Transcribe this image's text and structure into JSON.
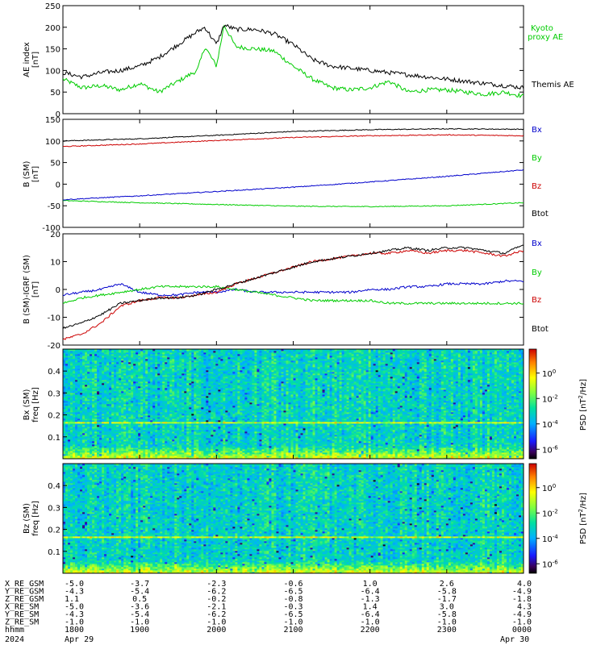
{
  "colors": {
    "black": "#000000",
    "blue": "#0000cc",
    "green": "#00cc00",
    "red": "#cc0000"
  },
  "chart_data": [
    {
      "type": "line",
      "ylabel": "AE index [nT]",
      "ylim": [
        0,
        250
      ],
      "yticks": [
        "250",
        "200",
        "150",
        "100",
        "50",
        "0"
      ],
      "x_time_hours": [
        18.0,
        18.25,
        18.5,
        18.75,
        19.0,
        19.25,
        19.5,
        19.75,
        19.85,
        20.0,
        20.1,
        20.25,
        20.5,
        20.75,
        21.0,
        21.25,
        21.5,
        21.75,
        22.0,
        22.25,
        22.5,
        22.75,
        23.0,
        23.25,
        23.5,
        23.75,
        24.0
      ],
      "series": [
        {
          "name": "Kyoto proxy AE",
          "color": "green",
          "values": [
            80,
            60,
            65,
            55,
            70,
            50,
            75,
            100,
            155,
            110,
            205,
            155,
            150,
            145,
            110,
            80,
            60,
            55,
            60,
            75,
            50,
            55,
            55,
            50,
            45,
            50,
            40
          ]
        },
        {
          "name": "Themis AE",
          "color": "black",
          "values": [
            95,
            85,
            95,
            100,
            110,
            130,
            160,
            190,
            200,
            160,
            205,
            195,
            195,
            185,
            160,
            125,
            110,
            105,
            100,
            95,
            90,
            85,
            80,
            75,
            70,
            65,
            60
          ]
        }
      ]
    },
    {
      "type": "line",
      "ylabel": "B (SM) [nT]",
      "ylim": [
        -100,
        150
      ],
      "yticks": [
        "150",
        "100",
        "50",
        "0",
        "-50",
        "-100"
      ],
      "x_time_hours": [
        18,
        19,
        20,
        21,
        22,
        23,
        24
      ],
      "series": [
        {
          "name": "Bx",
          "color": "black",
          "values": [
            100,
            105,
            113,
            122,
            126,
            128,
            127
          ]
        },
        {
          "name": "By",
          "color": "green",
          "values": [
            -38,
            -43,
            -47,
            -51,
            -52,
            -50,
            -43
          ]
        },
        {
          "name": "Bz",
          "color": "red",
          "values": [
            87,
            93,
            101,
            108,
            112,
            114,
            112
          ]
        },
        {
          "name": "Btot",
          "color": "blue",
          "values": [
            -36,
            -27,
            -17,
            -7,
            5,
            18,
            33
          ]
        }
      ]
    },
    {
      "type": "line",
      "ylabel": "B (SM)-IGRF (SM) [nT]",
      "ylim": [
        -20,
        20
      ],
      "yticks": [
        "20",
        "10",
        "0",
        "-10",
        "-20"
      ],
      "x_time_hours": [
        18.0,
        18.25,
        18.5,
        18.75,
        19.0,
        19.25,
        19.5,
        19.75,
        20.0,
        20.25,
        20.5,
        20.75,
        21.0,
        21.25,
        21.5,
        21.75,
        22.0,
        22.25,
        22.5,
        22.75,
        23.0,
        23.25,
        23.5,
        23.75,
        24.0
      ],
      "series": [
        {
          "name": "Bx",
          "color": "blue",
          "values": [
            -2,
            -1,
            0,
            2,
            -1,
            -2,
            -2,
            -1,
            -1,
            0,
            -1,
            -1,
            -1,
            -1,
            -1,
            -1,
            0,
            0,
            1,
            1,
            2,
            2,
            2,
            3,
            3
          ]
        },
        {
          "name": "By",
          "color": "green",
          "values": [
            -5,
            -3,
            -2,
            -1,
            0,
            1,
            1,
            1,
            1,
            0,
            -1,
            -2,
            -3,
            -4,
            -4,
            -4,
            -4,
            -5,
            -5,
            -5,
            -5,
            -5,
            -5,
            -5,
            -5
          ]
        },
        {
          "name": "Bz",
          "color": "red",
          "values": [
            -18,
            -16,
            -12,
            -6,
            -4,
            -3,
            -3,
            -2,
            -1,
            2,
            4,
            6,
            8,
            10,
            11,
            12,
            13,
            13,
            14,
            13,
            14,
            14,
            13,
            12,
            14
          ]
        },
        {
          "name": "Btot",
          "color": "black",
          "values": [
            -14,
            -12,
            -9,
            -5,
            -4,
            -3,
            -3,
            -2,
            0,
            2,
            4,
            6,
            8,
            10,
            11,
            12,
            13,
            14,
            15,
            14,
            15,
            15,
            14,
            13,
            16
          ]
        }
      ]
    },
    {
      "type": "heatmap",
      "ylabel": "Bx (SM) freq [Hz]",
      "ylim": [
        0,
        0.5
      ],
      "yticks": [
        "0.4",
        "0.3",
        "0.2",
        "0.1"
      ],
      "colorbar_label": "PSD [nT^2/Hz]",
      "colorbar_ticks": [
        "10^0",
        "10^-2",
        "10^-4",
        "10^-6"
      ]
    },
    {
      "type": "heatmap",
      "ylabel": "Bz (SM) freq [Hz]",
      "ylim": [
        0,
        0.5
      ],
      "yticks": [
        "0.4",
        "0.3",
        "0.2",
        "0.1"
      ],
      "colorbar_label": "PSD [nT^2/Hz]",
      "colorbar_ticks": [
        "10^0",
        "10^-2",
        "10^-4",
        "10^-6"
      ]
    }
  ],
  "panels": {
    "ae": {
      "ylabel_main": "AE index",
      "ylabel_unit": "[nT]",
      "legend_top": "Kyoto",
      "legend_top2": "proxy AE",
      "legend_bottom": "Themis AE"
    },
    "bsm": {
      "ylabel_main": "B (SM)",
      "ylabel_unit": "[nT]",
      "legend": [
        "Bx",
        "By",
        "Bz",
        "Btot"
      ]
    },
    "bdiff": {
      "ylabel_main": "B (SM)-IGRF (SM)",
      "ylabel_unit": "[nT]",
      "legend": [
        "Bx",
        "By",
        "Bz",
        "Btot"
      ]
    },
    "spec1": {
      "ylabel_main": "Bx (SM)",
      "ylabel_unit": "freq [Hz]",
      "cb_label": "PSD [nT",
      "cb_label2": "/Hz]"
    },
    "spec2": {
      "ylabel_main": "Bz (SM)",
      "ylabel_unit": "freq [Hz]",
      "cb_label": "PSD [nT",
      "cb_label2": "/Hz]"
    }
  },
  "ephemeris": {
    "rows": [
      {
        "label": "X_RE_GSM",
        "values": [
          "-5.0",
          "-3.7",
          "-2.3",
          "-0.6",
          "1.0",
          "2.6",
          "4.0"
        ]
      },
      {
        "label": "Y_RE_GSM",
        "values": [
          "-4.3",
          "-5.4",
          "-6.2",
          "-6.5",
          "-6.4",
          "-5.8",
          "-4.9"
        ]
      },
      {
        "label": "Z_RE_GSM",
        "values": [
          "1.1",
          "0.5",
          "-0.2",
          "-0.8",
          "-1.3",
          "-1.7",
          "-1.8"
        ]
      },
      {
        "label": "X_RE_SM",
        "values": [
          "-5.0",
          "-3.6",
          "-2.1",
          "-0.3",
          "1.4",
          "3.0",
          "4.3"
        ]
      },
      {
        "label": "Y_RE_SM",
        "values": [
          "-4.3",
          "-5.4",
          "-6.2",
          "-6.5",
          "-6.4",
          "-5.8",
          "-4.9"
        ]
      },
      {
        "label": "Z_RE_SM",
        "values": [
          "-1.0",
          "-1.0",
          "-1.0",
          "-1.0",
          "-1.0",
          "-1.0",
          "-1.0"
        ]
      },
      {
        "label": "hhmm",
        "values": [
          "1800",
          "1900",
          "2000",
          "2100",
          "2200",
          "2300",
          "0000"
        ]
      }
    ],
    "year": "2024",
    "date_start": "Apr 29",
    "date_end": "Apr 30"
  }
}
